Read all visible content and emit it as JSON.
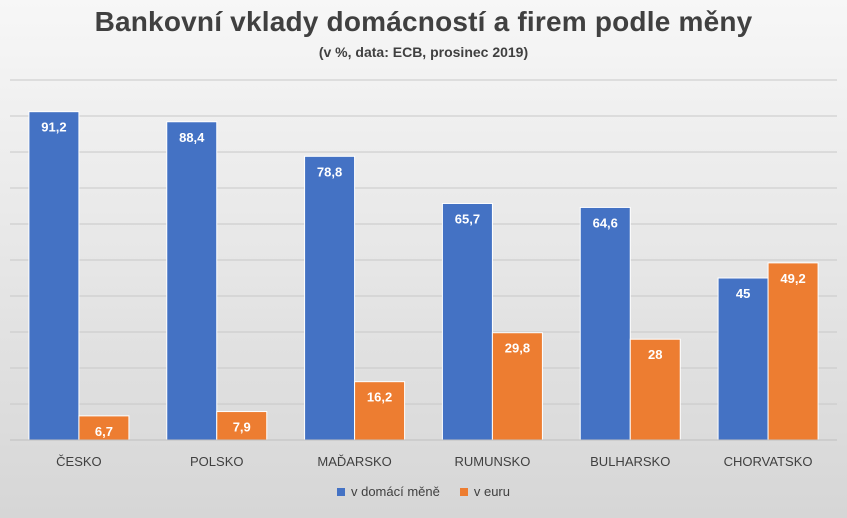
{
  "chart_data": {
    "type": "bar",
    "title": "Bankovní vklady domácností a firem podle měny",
    "subtitle": "(v %, data: ECB, prosinec 2019)",
    "categories": [
      "ČESKO",
      "POLSKO",
      "MAĎARSKO",
      "RUMUNSKO",
      "BULHARSKO",
      "CHORVATSKO"
    ],
    "series": [
      {
        "name": "v domácí měně",
        "values": [
          91.2,
          88.4,
          78.8,
          65.7,
          64.6,
          45
        ],
        "labels": [
          "91,2",
          "88,4",
          "78,8",
          "65,7",
          "64,6",
          "45"
        ],
        "color": "#4472c4"
      },
      {
        "name": "v euru",
        "values": [
          6.7,
          7.9,
          16.2,
          29.8,
          28,
          49.2
        ],
        "labels": [
          "6,7",
          "7,9",
          "16,2",
          "29,8",
          "28",
          "49,2"
        ],
        "color": "#ed7d31"
      }
    ],
    "ylim": [
      0,
      100
    ],
    "grid": true,
    "legend": "bottom",
    "xlabel": "",
    "ylabel": ""
  }
}
